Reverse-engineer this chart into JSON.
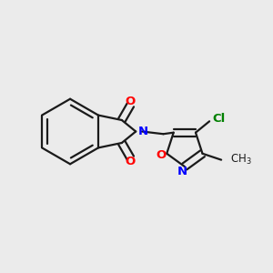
{
  "background_color": "#ebebeb",
  "bond_color": "#1a1a1a",
  "bond_width": 1.6,
  "atom_colors": {
    "O": "#ff0000",
    "N": "#0000ff",
    "Cl": "#008000",
    "C": "#1a1a1a"
  },
  "font_size": 9.5,
  "font_size_small": 8.5
}
